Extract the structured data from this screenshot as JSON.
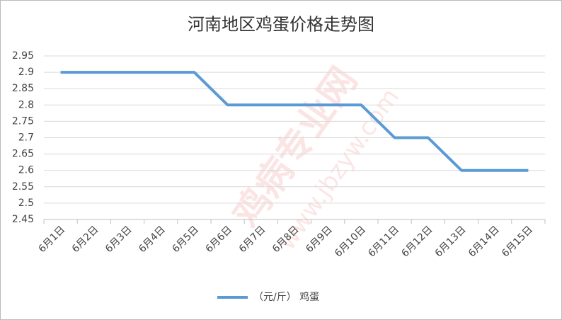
{
  "chart_data": {
    "type": "line",
    "title": "河南地区鸡蛋价格走势图",
    "categories": [
      "6月1日",
      "6月2日",
      "6月3日",
      "6月4日",
      "6月5日",
      "6月6日",
      "6月7日",
      "6月8日",
      "6月9日",
      "6月10日",
      "6月11日",
      "6月12日",
      "6月13日",
      "6月14日",
      "6月15日"
    ],
    "series": [
      {
        "name": "（元/斤） 鸡蛋",
        "color": "#5b9bd5",
        "values": [
          2.9,
          2.9,
          2.9,
          2.9,
          2.9,
          2.8,
          2.8,
          2.8,
          2.8,
          2.8,
          2.7,
          2.7,
          2.6,
          2.6,
          2.6
        ]
      }
    ],
    "ylim": [
      2.45,
      2.95
    ],
    "yticks": [
      2.45,
      2.5,
      2.55,
      2.6,
      2.65,
      2.7,
      2.75,
      2.8,
      2.85,
      2.9,
      2.95
    ],
    "grid": true,
    "legend": "bottom",
    "watermark": [
      "鸡病专业网",
      "www.jbzyw.com"
    ]
  }
}
